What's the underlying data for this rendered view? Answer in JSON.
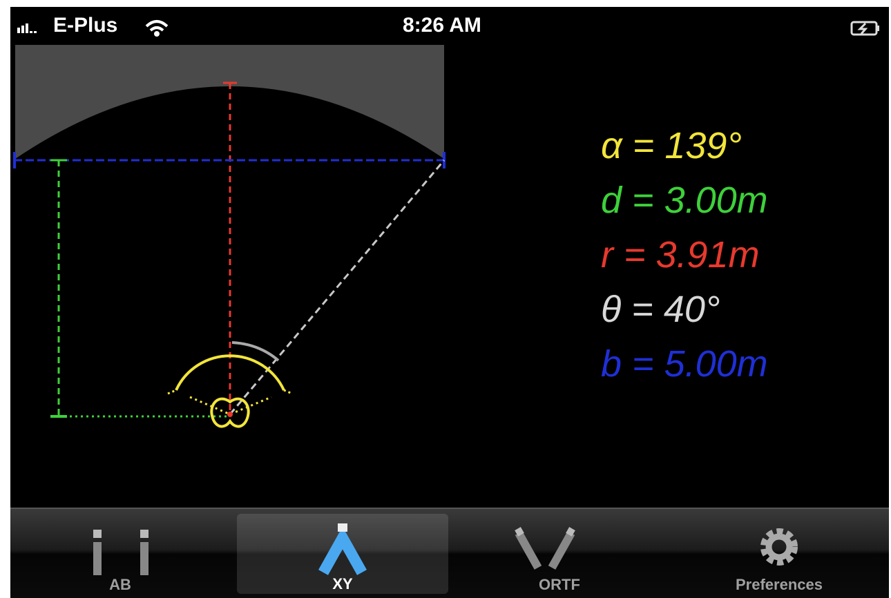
{
  "status_bar": {
    "carrier": "E-Plus",
    "time": "8:26 AM"
  },
  "readouts": [
    {
      "text": "α = 139°",
      "color": "#f2e53a"
    },
    {
      "text": "d = 3.00m",
      "color": "#3ed13a"
    },
    {
      "text": "r = 3.91m",
      "color": "#e8392e"
    },
    {
      "text": "θ = 40°",
      "color": "#d8d8d8"
    },
    {
      "text": "b = 5.00m",
      "color": "#1f2fd6"
    }
  ],
  "tabs": [
    {
      "label": "AB",
      "selected": false
    },
    {
      "label": "XY",
      "selected": true
    },
    {
      "label": "ORTF",
      "selected": false
    },
    {
      "label": "Preferences",
      "selected": false
    }
  ]
}
